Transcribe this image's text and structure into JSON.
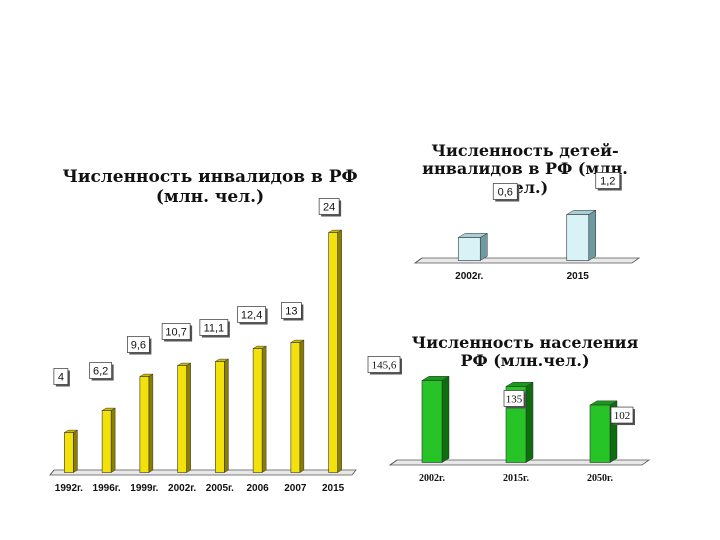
{
  "chart_data": [
    {
      "type": "bar",
      "title": "Численность инвалидов в РФ (млн. чел.)",
      "categories": [
        "1992г.",
        "1996г.",
        "1999г.",
        "2002г.",
        "2005г.",
        "2006",
        "2007",
        "2015"
      ],
      "values": [
        4,
        6.2,
        9.6,
        10.7,
        11.1,
        12.4,
        13,
        24
      ],
      "value_labels": [
        "4",
        "6,2",
        "9,6",
        "10,7",
        "11,1",
        "12,4",
        "13",
        "24"
      ],
      "ylim": [
        0,
        24
      ],
      "grid": false,
      "colors": {
        "bar": "#f2e10a",
        "bar_dark": "#8a7e00",
        "bar_top": "#c9bc00"
      }
    },
    {
      "type": "bar",
      "title": "Численность детей-инвалидов в РФ (млн. чел.)",
      "categories": [
        "2002г.",
        "2015"
      ],
      "values": [
        0.6,
        1.2
      ],
      "value_labels": [
        "0,6",
        "1,2"
      ],
      "ylim": [
        0,
        1.2
      ],
      "grid": false,
      "colors": {
        "bar": "#d9f2f6",
        "bar_dark": "#6e9aa2",
        "bar_top": "#a9cfd6"
      }
    },
    {
      "type": "bar",
      "title": "Численность населения РФ (млн.чел.)",
      "categories": [
        "2002г.",
        "2015г.",
        "2050г."
      ],
      "values": [
        145.6,
        135,
        102
      ],
      "value_labels": [
        "145,6",
        "135",
        "102"
      ],
      "ylim": [
        0,
        145.6
      ],
      "grid": false,
      "colors": {
        "bar": "#27c427",
        "bar_dark": "#0d6e0d",
        "bar_top": "#1a9a1a"
      }
    }
  ]
}
